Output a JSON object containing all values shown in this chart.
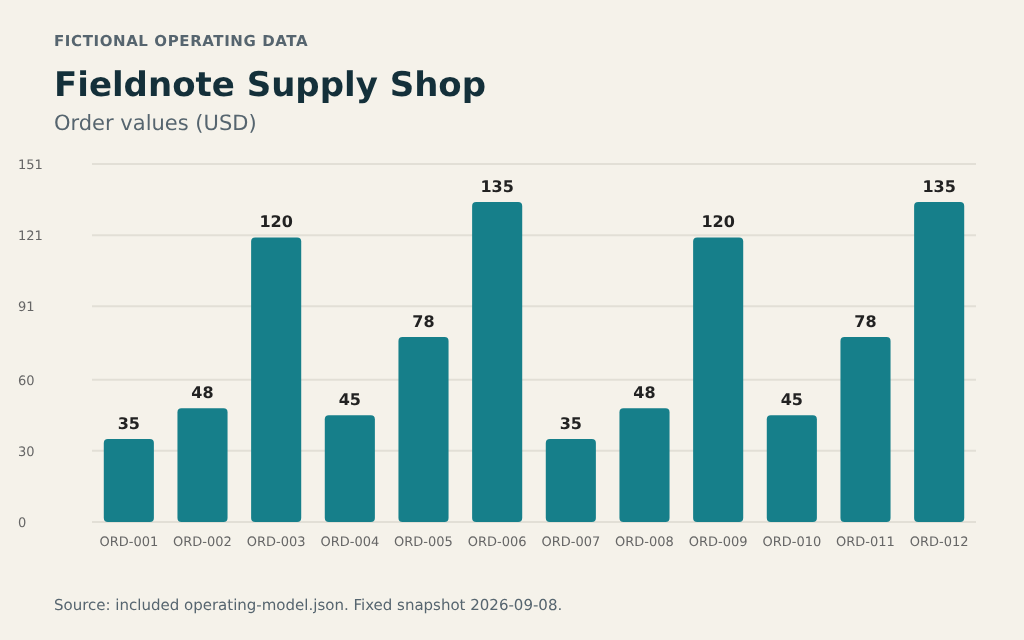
{
  "chart_data": {
    "type": "bar",
    "title": "Fieldnote Supply Shop",
    "subtitle": "Order values (USD)",
    "annotations": [
      "FICTIONAL OPERATING DATA",
      "Source: included operating-model.json. Fixed snapshot 2026-09-08."
    ],
    "categories": [
      "ORD-001",
      "ORD-002",
      "ORD-003",
      "ORD-004",
      "ORD-005",
      "ORD-006",
      "ORD-007",
      "ORD-008",
      "ORD-009",
      "ORD-010",
      "ORD-011",
      "ORD-012"
    ],
    "values": [
      35,
      48,
      120,
      45,
      78,
      135,
      35,
      48,
      120,
      45,
      78,
      135
    ],
    "color": "#167f8a",
    "ylim": [
      0,
      151
    ],
    "yticks": [
      0,
      30,
      60,
      91,
      121,
      151
    ],
    "grid": "y",
    "data_labels": true
  }
}
